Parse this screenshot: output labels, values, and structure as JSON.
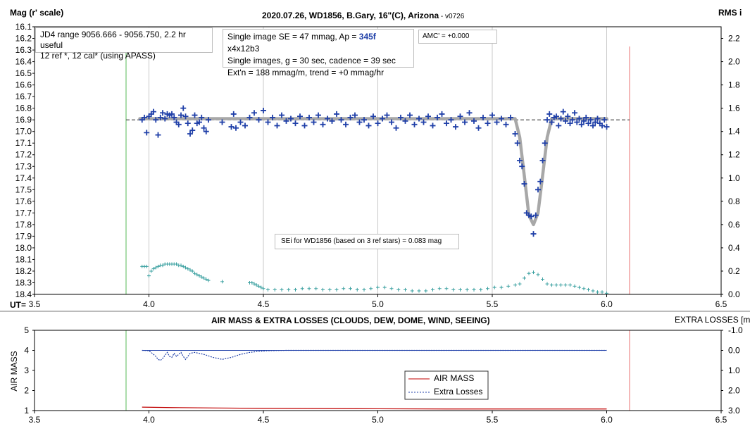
{
  "top": {
    "y_label": "Mag (r' scale)",
    "right_label": "RMS i",
    "title": "2020.07.26, WD1856, B.Gary, 16\"(C), Arizona",
    "version": " - v0726",
    "ut_label": "UT=",
    "info1": [
      "JD4 range 9056.666 - 9056.750, 2.2 hr useful",
      " 12 ref *, 12 cal* (using APASS)"
    ],
    "info2_pre": "Single image SE = 47 mmag, Ap = ",
    "info2_ap": "345f",
    "info2_post": " x4x12b3",
    "info2_line2": "Single images, g = 30 sec, cadence = 39 sec",
    "info2_line3": "Ext'n = 188 mmag/m, trend = +0 mmag/hr",
    "amc": "AMC' = +0.000",
    "sei": "SEi for WD1856 (based on 3 ref stars) = 0.083 mag"
  },
  "bottom": {
    "title": "AIR MASS & EXTRA LOSSES (CLOUDS, DEW, DOME, WIND, SEEING)",
    "right_title": "EXTRA LOSSES [mag]",
    "y_label": "AIR MASS",
    "legend_air": "AIR MASS",
    "legend_extra": "Extra Losses"
  },
  "colors": {
    "data": "#1f3fa8",
    "model": "#a8a8a8",
    "rms": "#3aa0a0",
    "green_line": "#8fd08f",
    "red_line": "#f0a0a0",
    "airmass": "#c00000"
  },
  "chart_data": [
    {
      "type": "scatter",
      "title": "2020.07.26, WD1856, B.Gary, 16\"(C), Arizona",
      "xlabel": "UT=",
      "ylabel": "Mag (r' scale)",
      "y2label": "RMS i",
      "xlim": [
        3.5,
        6.5
      ],
      "ylim": [
        18.4,
        16.1
      ],
      "y2lim": [
        0.0,
        2.3
      ],
      "x_ticks": [
        "3.5",
        "4.0",
        "4.5",
        "5.0",
        "5.5",
        "6.0",
        "6.5"
      ],
      "y_ticks": [
        "16.1",
        "16.2",
        "16.3",
        "16.4",
        "16.5",
        "16.6",
        "16.7",
        "16.8",
        "16.9",
        "17.0",
        "17.1",
        "17.2",
        "17.3",
        "17.4",
        "17.5",
        "17.6",
        "17.7",
        "17.8",
        "17.9",
        "18.0",
        "18.1",
        "18.2",
        "18.3",
        "18.4"
      ],
      "y2_ticks": [
        "0.0",
        "0.2",
        "0.4",
        "0.6",
        "0.8",
        "1.0",
        "1.2",
        "1.4",
        "1.6",
        "1.8",
        "2.0",
        "2.2"
      ],
      "grid": true,
      "vertical_lines": {
        "green": 3.9,
        "red": 6.1
      },
      "baseline_mag": 16.9,
      "model": {
        "x": [
          3.96,
          5.6,
          5.62,
          5.64,
          5.66,
          5.68,
          5.7,
          5.72,
          5.74,
          5.76,
          6.0
        ],
        "y": [
          16.89,
          16.89,
          17.05,
          17.38,
          17.72,
          17.8,
          17.7,
          17.38,
          17.05,
          16.89,
          16.89
        ]
      },
      "rms_x": [
        3.97,
        3.98,
        3.99,
        4.0,
        4.01,
        4.02,
        4.03,
        4.04,
        4.05,
        4.06,
        4.07,
        4.08,
        4.09,
        4.1,
        4.11,
        4.12,
        4.13,
        4.14,
        4.15,
        4.16,
        4.17,
        4.18,
        4.19,
        4.2,
        4.21,
        4.22,
        4.23,
        4.24,
        4.25,
        4.26,
        4.32,
        4.44,
        4.45,
        4.46,
        4.47,
        4.48,
        4.49,
        4.5,
        4.52,
        4.55,
        4.58,
        4.61,
        4.64,
        4.67,
        4.7,
        4.73,
        4.76,
        4.79,
        4.82,
        4.85,
        4.88,
        4.91,
        4.94,
        4.97,
        5.0,
        5.03,
        5.06,
        5.09,
        5.12,
        5.15,
        5.18,
        5.21,
        5.24,
        5.27,
        5.3,
        5.33,
        5.36,
        5.39,
        5.42,
        5.45,
        5.48,
        5.51,
        5.54,
        5.57,
        5.6,
        5.62,
        5.64,
        5.66,
        5.68,
        5.7,
        5.72,
        5.74,
        5.76,
        5.78,
        5.8,
        5.82,
        5.84,
        5.86,
        5.88,
        5.9,
        5.92,
        5.94,
        5.96,
        5.98,
        6.0
      ],
      "rms_y": [
        0.24,
        0.24,
        0.24,
        0.16,
        0.2,
        0.22,
        0.23,
        0.24,
        0.25,
        0.25,
        0.26,
        0.26,
        0.26,
        0.26,
        0.26,
        0.26,
        0.25,
        0.25,
        0.24,
        0.23,
        0.22,
        0.21,
        0.2,
        0.18,
        0.17,
        0.16,
        0.15,
        0.14,
        0.13,
        0.12,
        0.11,
        0.1,
        0.1,
        0.09,
        0.08,
        0.07,
        0.06,
        0.05,
        0.04,
        0.04,
        0.04,
        0.04,
        0.04,
        0.05,
        0.05,
        0.05,
        0.04,
        0.04,
        0.04,
        0.05,
        0.05,
        0.04,
        0.04,
        0.05,
        0.06,
        0.06,
        0.05,
        0.04,
        0.04,
        0.03,
        0.03,
        0.03,
        0.04,
        0.05,
        0.05,
        0.04,
        0.04,
        0.04,
        0.04,
        0.04,
        0.05,
        0.06,
        0.06,
        0.07,
        0.08,
        0.09,
        0.14,
        0.18,
        0.19,
        0.17,
        0.13,
        0.09,
        0.08,
        0.08,
        0.08,
        0.08,
        0.08,
        0.07,
        0.06,
        0.05,
        0.04,
        0.03,
        0.02,
        0.02,
        0.01
      ],
      "points_x": [
        3.97,
        3.98,
        3.99,
        4.0,
        4.01,
        4.02,
        4.03,
        4.04,
        4.05,
        4.06,
        4.07,
        4.08,
        4.09,
        4.1,
        4.11,
        4.12,
        4.13,
        4.14,
        4.15,
        4.16,
        4.17,
        4.18,
        4.19,
        4.2,
        4.21,
        4.22,
        4.23,
        4.24,
        4.25,
        4.26,
        4.32,
        4.36,
        4.37,
        4.38,
        4.4,
        4.42,
        4.44,
        4.46,
        4.48,
        4.5,
        4.52,
        4.54,
        4.56,
        4.58,
        4.6,
        4.62,
        4.64,
        4.66,
        4.68,
        4.7,
        4.72,
        4.74,
        4.76,
        4.78,
        4.8,
        4.82,
        4.84,
        4.86,
        4.88,
        4.9,
        4.92,
        4.94,
        4.96,
        4.98,
        5.0,
        5.02,
        5.04,
        5.06,
        5.08,
        5.1,
        5.12,
        5.14,
        5.16,
        5.18,
        5.2,
        5.22,
        5.24,
        5.26,
        5.28,
        5.3,
        5.32,
        5.34,
        5.36,
        5.38,
        5.4,
        5.42,
        5.44,
        5.46,
        5.48,
        5.5,
        5.52,
        5.54,
        5.56,
        5.58,
        5.6,
        5.61,
        5.62,
        5.63,
        5.64,
        5.65,
        5.66,
        5.67,
        5.68,
        5.69,
        5.7,
        5.71,
        5.72,
        5.73,
        5.74,
        5.75,
        5.76,
        5.77,
        5.78,
        5.79,
        5.8,
        5.81,
        5.82,
        5.83,
        5.84,
        5.85,
        5.86,
        5.87,
        5.88,
        5.89,
        5.9,
        5.91,
        5.92,
        5.93,
        5.94,
        5.95,
        5.96,
        5.97,
        5.98,
        5.99,
        6.0
      ],
      "points_y": [
        16.9,
        16.88,
        17.01,
        16.87,
        16.85,
        16.83,
        16.9,
        17.03,
        16.88,
        16.84,
        16.89,
        16.85,
        16.86,
        16.85,
        16.88,
        16.92,
        16.94,
        16.86,
        16.8,
        16.87,
        16.93,
        17.02,
        16.99,
        16.86,
        16.93,
        16.92,
        16.88,
        16.97,
        17.0,
        16.9,
        16.92,
        16.96,
        16.85,
        16.97,
        16.92,
        16.95,
        16.88,
        16.84,
        16.9,
        16.82,
        16.92,
        16.88,
        16.95,
        16.86,
        16.91,
        16.89,
        16.93,
        16.87,
        16.95,
        16.88,
        16.92,
        16.86,
        16.94,
        16.89,
        16.91,
        16.85,
        16.9,
        16.94,
        16.88,
        16.86,
        16.92,
        16.9,
        16.95,
        16.87,
        16.93,
        16.89,
        16.86,
        16.92,
        16.97,
        16.88,
        16.91,
        16.86,
        16.94,
        16.89,
        16.92,
        16.87,
        16.95,
        16.88,
        16.85,
        16.93,
        16.9,
        16.96,
        16.87,
        16.92,
        16.84,
        16.91,
        16.97,
        16.88,
        16.93,
        16.86,
        16.92,
        16.89,
        16.94,
        16.88,
        17.02,
        17.1,
        17.25,
        17.3,
        17.45,
        17.7,
        17.72,
        17.73,
        17.88,
        17.72,
        17.5,
        17.43,
        17.25,
        17.1,
        16.9,
        16.85,
        16.92,
        16.88,
        16.87,
        16.95,
        16.89,
        16.83,
        16.91,
        16.87,
        16.93,
        16.9,
        16.84,
        16.92,
        16.89,
        16.94,
        16.91,
        16.88,
        16.93,
        16.9,
        16.95,
        16.92,
        16.89,
        16.93,
        16.95,
        16.9,
        16.96
      ]
    },
    {
      "type": "line",
      "title": "AIR MASS & EXTRA LOSSES (CLOUDS, DEW, DOME, WIND, SEEING)",
      "ylabel": "AIR MASS",
      "y2label": "EXTRA LOSSES [mag]",
      "xlim": [
        3.5,
        6.5
      ],
      "ylim": [
        1,
        5
      ],
      "y2lim": [
        3.0,
        -1.0
      ],
      "x_ticks": [
        "3.5",
        "4.0",
        "4.5",
        "5.0",
        "5.5",
        "6.0",
        "6.5"
      ],
      "y_ticks": [
        "1",
        "2",
        "3",
        "4",
        "5"
      ],
      "y2_ticks": [
        "3.0",
        "2.0",
        "1.0",
        "0.0",
        "-1.0"
      ],
      "series": [
        {
          "name": "AIR MASS",
          "x": [
            3.97,
            4.1,
            4.3,
            4.5,
            4.7,
            5.0,
            5.3,
            5.6,
            5.8,
            6.0
          ],
          "values": [
            1.17,
            1.15,
            1.13,
            1.11,
            1.1,
            1.09,
            1.08,
            1.08,
            1.08,
            1.08
          ]
        },
        {
          "name": "Extra Losses",
          "x": [
            3.97,
            4.0,
            4.02,
            4.03,
            4.04,
            4.05,
            4.06,
            4.07,
            4.08,
            4.09,
            4.1,
            4.11,
            4.12,
            4.13,
            4.14,
            4.15,
            4.16,
            4.17,
            4.18,
            4.2,
            4.24,
            4.28,
            4.32,
            4.36,
            4.4,
            4.44,
            4.48,
            4.52,
            4.6,
            5.0,
            5.5,
            6.0
          ],
          "values": [
            0.0,
            0.02,
            0.2,
            0.3,
            0.45,
            0.5,
            0.4,
            0.25,
            0.1,
            0.3,
            0.35,
            0.15,
            0.3,
            0.2,
            0.1,
            0.3,
            0.45,
            0.3,
            0.15,
            0.1,
            0.2,
            0.35,
            0.45,
            0.35,
            0.2,
            0.1,
            0.05,
            0.02,
            0.0,
            0.0,
            0.0,
            0.0
          ]
        }
      ],
      "reference_line": 0.0
    }
  ]
}
